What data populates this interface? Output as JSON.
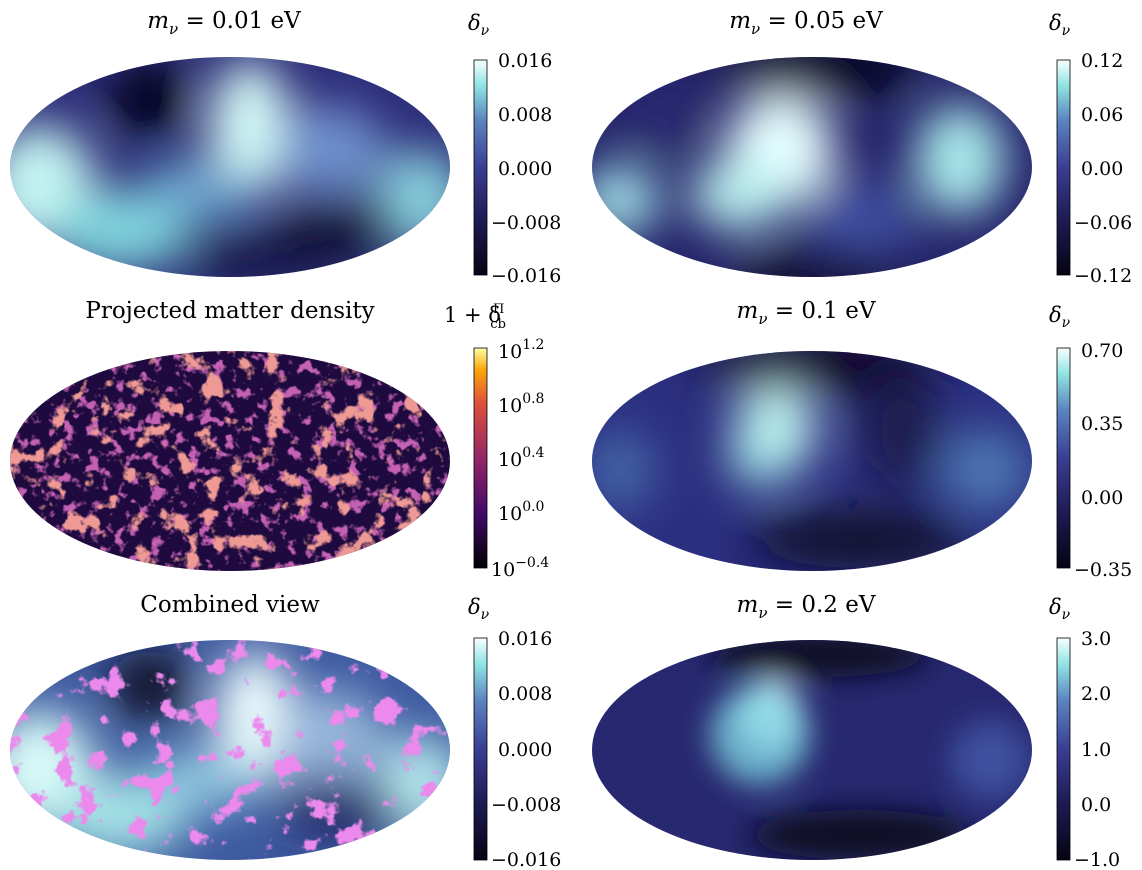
{
  "chart_data": [
    {
      "type": "heatmap",
      "panel": "top-left",
      "title_parts": [
        "m",
        "ν",
        " = 0.01 eV"
      ],
      "colorbar_label": [
        "δ",
        "ν"
      ],
      "colorbar_ticks": [
        "0.016",
        "0.008",
        "0.000",
        "−0.008",
        "−0.016"
      ],
      "colormap": "dark-blue-to-cyan-white",
      "range": [
        -0.016,
        0.016
      ],
      "projection": "mollweide"
    },
    {
      "type": "heatmap",
      "panel": "top-right",
      "title_parts": [
        "m",
        "ν",
        " = 0.05 eV"
      ],
      "colorbar_label": [
        "δ",
        "ν"
      ],
      "colorbar_ticks": [
        "0.12",
        "0.06",
        "0.00",
        "−0.06",
        "−0.12"
      ],
      "colormap": "dark-blue-to-cyan-white",
      "range": [
        -0.12,
        0.12
      ],
      "projection": "mollweide"
    },
    {
      "type": "heatmap",
      "panel": "middle-left",
      "title": "Projected matter density",
      "colorbar_label": [
        "1 + δ",
        "Π",
        "cb"
      ],
      "colorbar_ticks": [
        {
          "base": "10",
          "exp": "1.2"
        },
        {
          "base": "10",
          "exp": "0.8"
        },
        {
          "base": "10",
          "exp": "0.4"
        },
        {
          "base": "10",
          "exp": "0.0"
        },
        {
          "base": "10",
          "exp": "−0.4"
        }
      ],
      "colormap": "inferno-like",
      "log_scale": true,
      "range_log10": [
        -0.4,
        1.2
      ],
      "projection": "mollweide"
    },
    {
      "type": "heatmap",
      "panel": "middle-right",
      "title_parts": [
        "m",
        "ν",
        " = 0.1 eV"
      ],
      "colorbar_label": [
        "δ",
        "ν"
      ],
      "colorbar_ticks": [
        "0.70",
        "0.35",
        "0.00",
        "−0.35"
      ],
      "colormap": "dark-blue-to-cyan-white",
      "range": [
        -0.35,
        0.7
      ],
      "projection": "mollweide"
    },
    {
      "type": "heatmap",
      "panel": "bottom-left",
      "title": "Combined view",
      "colorbar_label": [
        "δ",
        "ν"
      ],
      "colorbar_ticks": [
        "0.016",
        "0.008",
        "0.000",
        "−0.008",
        "−0.016"
      ],
      "colormap": "dark-blue-to-cyan-white",
      "overlay_color": "#d43fd6",
      "range": [
        -0.016,
        0.016
      ],
      "projection": "mollweide"
    },
    {
      "type": "heatmap",
      "panel": "bottom-right",
      "title_parts": [
        "m",
        "ν",
        " = 0.2 eV"
      ],
      "colorbar_label": [
        "δ",
        "ν"
      ],
      "colorbar_ticks": [
        "3.0",
        "2.0",
        "1.0",
        "0.0",
        "−1.0"
      ],
      "colormap": "dark-blue-to-cyan-white",
      "range": [
        -1.0,
        3.0
      ],
      "projection": "mollweide"
    }
  ],
  "colors": {
    "cmap_dark": "#050414",
    "cmap_navy": "#1d1a52",
    "cmap_blue": "#3a3e93",
    "cmap_steel": "#5c84c0",
    "cmap_cyan": "#8fe3e3",
    "cmap_white": "#f8ffff",
    "inferno_dark": "#000004",
    "inferno_purple": "#420a68",
    "inferno_red": "#932667",
    "inferno_orange": "#dd513a",
    "inferno_yellow": "#fcffa4",
    "overlay": "#d43fd6"
  }
}
